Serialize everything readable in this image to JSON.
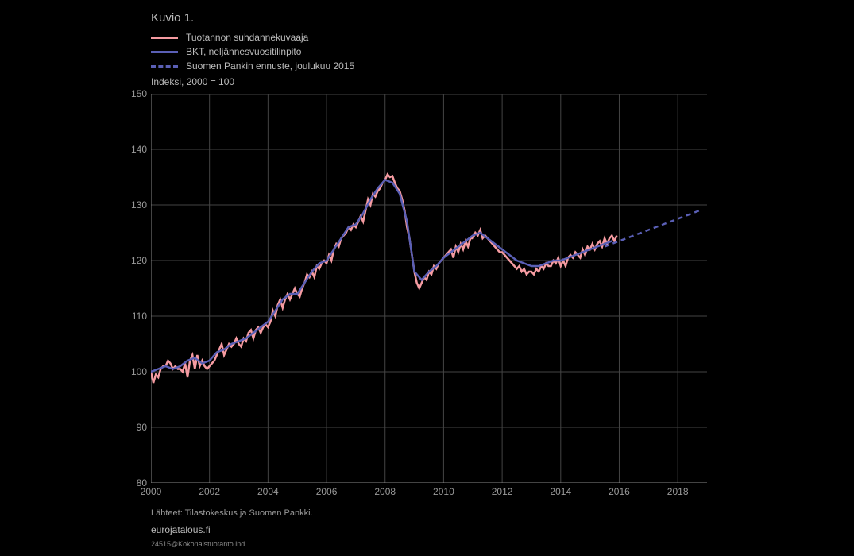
{
  "title": "Kuvio 1.",
  "chart": {
    "type": "line",
    "unit_label": "Indeksi, 2000 = 100",
    "x": {
      "min": 2000,
      "max": 2019,
      "ticks": [
        2000,
        2002,
        2004,
        2006,
        2008,
        2010,
        2012,
        2014,
        2016,
        2018
      ]
    },
    "y": {
      "min": 80,
      "max": 150,
      "ticks": [
        80,
        90,
        100,
        110,
        120,
        130,
        140,
        150
      ]
    },
    "plot_bg": "#000000",
    "grid_color": "#444444",
    "axis_color": "#888888",
    "text_color": "#999999",
    "legend": [
      {
        "label": "Tuotannon suhdannekuvaaja",
        "color": "#f59ba1",
        "style": "solid"
      },
      {
        "label": "BKT, neljännesvuositilinpito",
        "color": "#5a5fb5",
        "style": "solid"
      },
      {
        "label": "Suomen Pankin ennuste, joulukuu 2015",
        "color": "#5a5fb5",
        "style": "dashed"
      }
    ],
    "series": {
      "monthly": {
        "color": "#f59ba1",
        "style": "solid",
        "width": 2.5,
        "start_year": 2000,
        "step": 0.0833333,
        "values": [
          100,
          98,
          99.5,
          99,
          100.5,
          101,
          101,
          102,
          101.5,
          100.5,
          101,
          100.5,
          100.5,
          100,
          101.5,
          99,
          102,
          103,
          100.5,
          103,
          101,
          102,
          101,
          100.5,
          101,
          101.5,
          102,
          103,
          104,
          105,
          103,
          104,
          105,
          104.5,
          105,
          106,
          105,
          104.5,
          106,
          105.5,
          107,
          107.5,
          106,
          107.5,
          108,
          107,
          108,
          108.5,
          108,
          109,
          111,
          110,
          112,
          113,
          111.5,
          113,
          114,
          113,
          114,
          115,
          114,
          113.5,
          115,
          116,
          117.5,
          117,
          118,
          117,
          119,
          118.5,
          119.5,
          120,
          119.5,
          121,
          120,
          122,
          123,
          122.5,
          124,
          124.5,
          125,
          126,
          125.5,
          126.5,
          126,
          127,
          128,
          127,
          129,
          131,
          130,
          132,
          131.5,
          132.5,
          133,
          134,
          134.5,
          135.5,
          135,
          135.2,
          134,
          133,
          132.5,
          131,
          129,
          126,
          124,
          121,
          118,
          116,
          115,
          116,
          117,
          116.5,
          118,
          117.5,
          119,
          118.5,
          119.5,
          120,
          120.5,
          121,
          121.5,
          122,
          120.5,
          122.5,
          121.5,
          123,
          122,
          123.5,
          122.5,
          124,
          124,
          125,
          124.5,
          125.5,
          124,
          124.5,
          124,
          123.5,
          123,
          122.5,
          122,
          121.5,
          121.5,
          121,
          120.5,
          120,
          119.5,
          119,
          118.5,
          119,
          118,
          118.5,
          117.5,
          118,
          118,
          117.5,
          118.5,
          118,
          119,
          118.5,
          119.5,
          119,
          119,
          120,
          119.5,
          120.5,
          119,
          120,
          119,
          120.5,
          121,
          120.5,
          121.5,
          121,
          120.5,
          122,
          121,
          122.5,
          122,
          123,
          122,
          123,
          123.5,
          122.5,
          124,
          123,
          124,
          124.5,
          123.5,
          124.5
        ]
      },
      "quarterly": {
        "color": "#5a5fb5",
        "style": "solid",
        "width": 2.5,
        "start_year": 2000,
        "step": 0.25,
        "values": [
          100,
          100.5,
          101,
          100.5,
          101,
          102,
          102.5,
          101.5,
          102,
          103.5,
          104,
          105,
          105.5,
          106,
          107,
          108,
          109,
          111,
          113,
          114,
          114,
          116,
          118,
          119.5,
          120,
          122,
          124,
          126,
          126.5,
          128.5,
          131,
          133,
          134.5,
          134,
          132,
          127,
          118,
          116.5,
          118,
          119,
          120.5,
          121.5,
          122.5,
          123.5,
          124.5,
          125,
          124,
          123,
          122,
          121,
          120,
          119.5,
          119,
          119,
          119.5,
          120,
          120,
          120.5,
          121,
          121.5,
          122,
          122.5,
          123,
          123.5
        ]
      },
      "forecast": {
        "color": "#5a5fb5",
        "style": "dashed",
        "width": 2.5,
        "start_year": 2015.5,
        "step": 0.25,
        "values": [
          122.5,
          123,
          123.5,
          124,
          124.5,
          125,
          125.5,
          126,
          126.5,
          127,
          127.5,
          128,
          128.5,
          129
        ]
      }
    }
  },
  "sources": "Lähteet: Tilastokeskus ja Suomen Pankki.",
  "url": "eurojatalous.fi",
  "footnote": "24515@Kokonaistuotanto ind."
}
